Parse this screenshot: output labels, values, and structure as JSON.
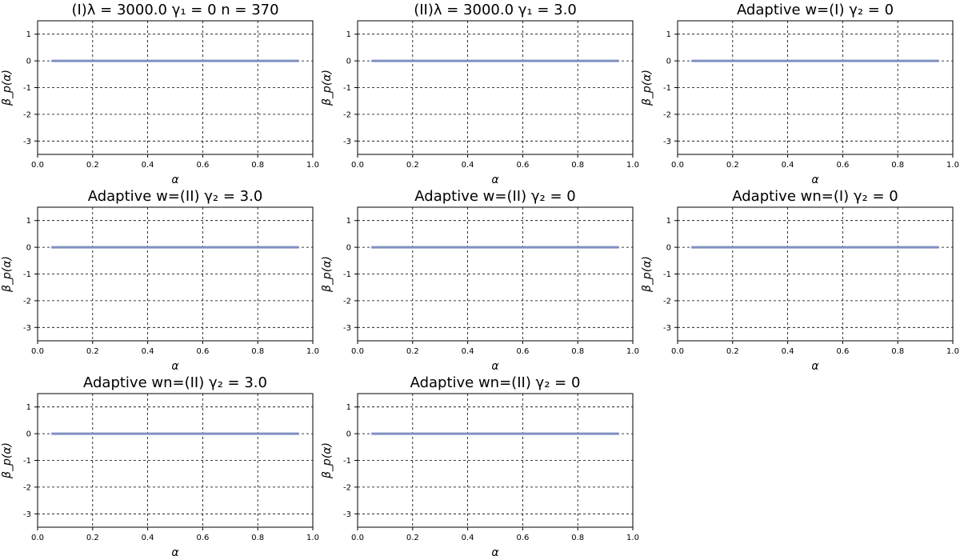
{
  "chart_data": [
    {
      "type": "line",
      "title": "(I)λ = 3000.0    γ₁ = 0    n = 370",
      "xlabel": "α",
      "ylabel": "β_p(α)",
      "xlim": [
        0.0,
        1.0
      ],
      "ylim": [
        -3.5,
        1.5
      ],
      "xticks": [
        "0.0",
        "0.2",
        "0.4",
        "0.6",
        "0.8",
        "1.0"
      ],
      "yticks": [
        "1",
        "0",
        "-1",
        "-2",
        "-3"
      ],
      "grid": true,
      "series": [
        {
          "x": [
            0.05,
            0.95
          ],
          "values": [
            0,
            0
          ],
          "color": "#8090c0"
        }
      ]
    },
    {
      "type": "line",
      "title": "(II)λ = 3000.0    γ₁ = 3.0",
      "xlabel": "α",
      "ylabel": "β_p(α)",
      "xlim": [
        0.0,
        1.0
      ],
      "ylim": [
        -3.5,
        1.5
      ],
      "xticks": [
        "0.0",
        "0.2",
        "0.4",
        "0.6",
        "0.8",
        "1.0"
      ],
      "yticks": [
        "1",
        "0",
        "-1",
        "-2",
        "-3"
      ],
      "grid": true,
      "series": [
        {
          "x": [
            0.05,
            0.95
          ],
          "values": [
            0,
            0
          ],
          "color": "#8090c0"
        }
      ]
    },
    {
      "type": "line",
      "title": "Adaptive w=(I) γ₂ = 0",
      "xlabel": "α",
      "ylabel": "β_p(α)",
      "xlim": [
        0.0,
        1.0
      ],
      "ylim": [
        -3.5,
        1.5
      ],
      "xticks": [
        "0.0",
        "0.2",
        "0.4",
        "0.6",
        "0.8",
        "1.0"
      ],
      "yticks": [
        "1",
        "0",
        "-1",
        "-2",
        "-3"
      ],
      "grid": true,
      "series": [
        {
          "x": [
            0.05,
            0.95
          ],
          "values": [
            0,
            0
          ],
          "color": "#8090c0"
        }
      ]
    },
    {
      "type": "line",
      "title": "Adaptive w=(II) γ₂ = 3.0",
      "xlabel": "α",
      "ylabel": "β_p(α)",
      "xlim": [
        0.0,
        1.0
      ],
      "ylim": [
        -3.5,
        1.5
      ],
      "xticks": [
        "0.0",
        "0.2",
        "0.4",
        "0.6",
        "0.8",
        "1.0"
      ],
      "yticks": [
        "1",
        "0",
        "-1",
        "-2",
        "-3"
      ],
      "grid": true,
      "series": [
        {
          "x": [
            0.05,
            0.95
          ],
          "values": [
            0,
            0
          ],
          "color": "#8090c0"
        }
      ]
    },
    {
      "type": "line",
      "title": "Adaptive w=(II) γ₂ = 0",
      "xlabel": "α",
      "ylabel": "β_p(α)",
      "xlim": [
        0.0,
        1.0
      ],
      "ylim": [
        -3.5,
        1.5
      ],
      "xticks": [
        "0.0",
        "0.2",
        "0.4",
        "0.6",
        "0.8",
        "1.0"
      ],
      "yticks": [
        "1",
        "0",
        "-1",
        "-2",
        "-3"
      ],
      "grid": true,
      "series": [
        {
          "x": [
            0.05,
            0.95
          ],
          "values": [
            0,
            0
          ],
          "color": "#8090c0"
        }
      ]
    },
    {
      "type": "line",
      "title": "Adaptive wn=(I) γ₂ = 0",
      "xlabel": "α",
      "ylabel": "β_p(α)",
      "xlim": [
        0.0,
        1.0
      ],
      "ylim": [
        -3.5,
        1.5
      ],
      "xticks": [
        "0.0",
        "0.2",
        "0.4",
        "0.6",
        "0.8",
        "1.0"
      ],
      "yticks": [
        "1",
        "0",
        "-1",
        "-2",
        "-3"
      ],
      "grid": true,
      "series": [
        {
          "x": [
            0.05,
            0.95
          ],
          "values": [
            0,
            0
          ],
          "color": "#8090c0"
        }
      ]
    },
    {
      "type": "line",
      "title": "Adaptive wn=(II) γ₂ = 3.0",
      "xlabel": "α",
      "ylabel": "β_p(α)",
      "xlim": [
        0.0,
        1.0
      ],
      "ylim": [
        -3.5,
        1.5
      ],
      "xticks": [
        "0.0",
        "0.2",
        "0.4",
        "0.6",
        "0.8",
        "1.0"
      ],
      "yticks": [
        "1",
        "0",
        "-1",
        "-2",
        "-3"
      ],
      "grid": true,
      "series": [
        {
          "x": [
            0.05,
            0.95
          ],
          "values": [
            0,
            0
          ],
          "color": "#8090c0"
        }
      ]
    },
    {
      "type": "line",
      "title": "Adaptive wn=(II) γ₂ = 0",
      "xlabel": "α",
      "ylabel": "β_p(α)",
      "xlim": [
        0.0,
        1.0
      ],
      "ylim": [
        -3.5,
        1.5
      ],
      "xticks": [
        "0.0",
        "0.2",
        "0.4",
        "0.6",
        "0.8",
        "1.0"
      ],
      "yticks": [
        "1",
        "0",
        "-1",
        "-2",
        "-3"
      ],
      "grid": true,
      "series": [
        {
          "x": [
            0.05,
            0.95
          ],
          "values": [
            0,
            0
          ],
          "color": "#8090c0"
        }
      ]
    }
  ]
}
